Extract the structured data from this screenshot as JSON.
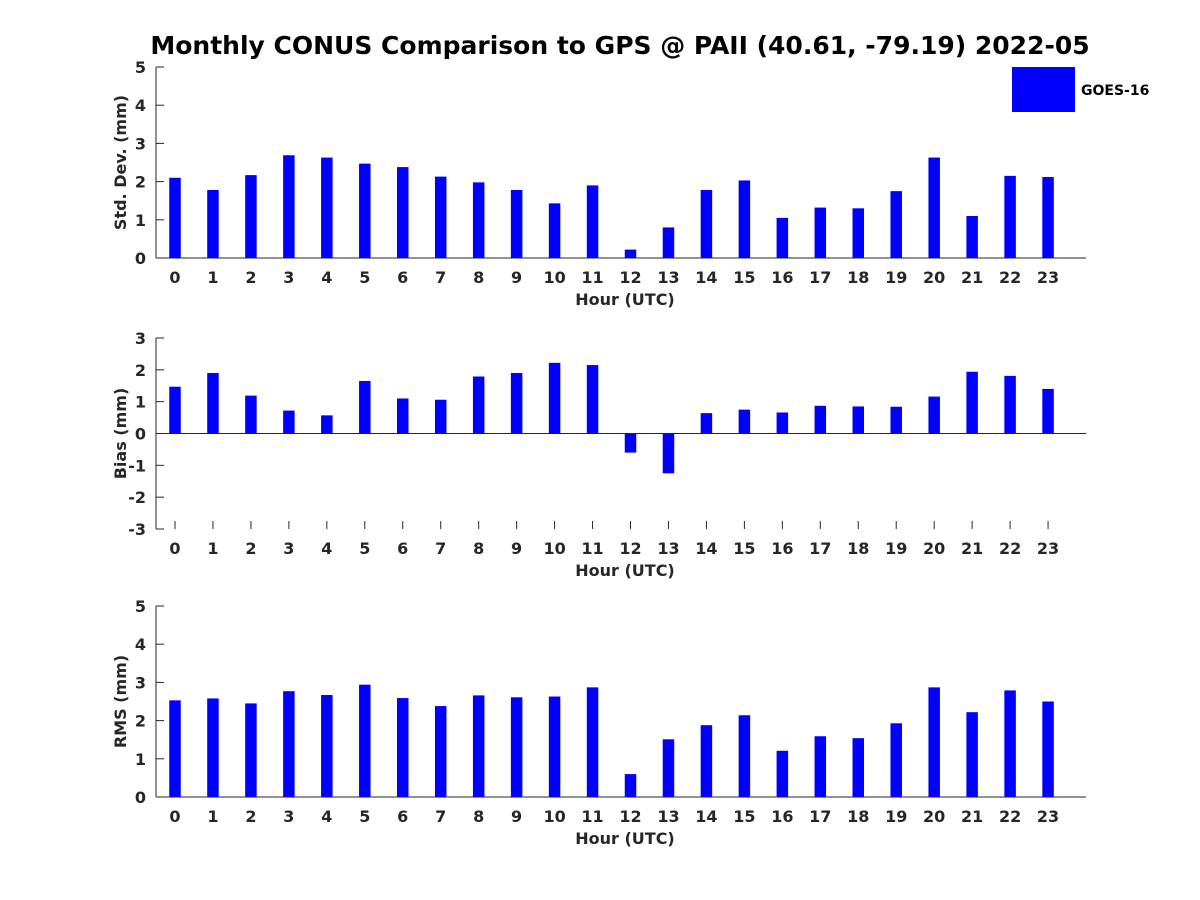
{
  "chart_data": {
    "title": "Monthly CONUS Comparison to GPS @ PAII (40.61, -79.19) 2022-05",
    "legend": {
      "label": "GOES-16",
      "color": "#0000ff",
      "placement": "top-right"
    },
    "colors": {
      "bar": "#0000ff",
      "axis": "#262626"
    },
    "panels": [
      {
        "type": "bar",
        "name": "std-dev",
        "xlabel": "Hour (UTC)",
        "ylabel": "Std. Dev. (mm)",
        "ylim": [
          0,
          5
        ],
        "yticks": [
          "0",
          "1",
          "2",
          "3",
          "4",
          "5"
        ],
        "categories": [
          "0",
          "1",
          "2",
          "3",
          "4",
          "5",
          "6",
          "7",
          "8",
          "9",
          "10",
          "11",
          "12",
          "13",
          "14",
          "15",
          "16",
          "17",
          "18",
          "19",
          "20",
          "21",
          "22",
          "23"
        ],
        "values": [
          2.1,
          1.78,
          2.17,
          2.69,
          2.63,
          2.47,
          2.38,
          2.13,
          1.98,
          1.78,
          1.43,
          1.9,
          0.22,
          0.8,
          1.78,
          2.03,
          1.05,
          1.32,
          1.3,
          1.75,
          2.63,
          1.1,
          2.15,
          2.12
        ],
        "series": [
          {
            "name": "GOES-16"
          }
        ]
      },
      {
        "type": "bar",
        "name": "bias",
        "xlabel": "Hour (UTC)",
        "ylabel": "Bias (mm)",
        "ylim": [
          -3,
          3
        ],
        "yticks": [
          "-3",
          "-2",
          "-1",
          "0",
          "1",
          "2",
          "3"
        ],
        "categories": [
          "0",
          "1",
          "2",
          "3",
          "4",
          "5",
          "6",
          "7",
          "8",
          "9",
          "10",
          "11",
          "12",
          "13",
          "14",
          "15",
          "16",
          "17",
          "18",
          "19",
          "20",
          "21",
          "22",
          "23"
        ],
        "values": [
          1.47,
          1.9,
          1.19,
          0.72,
          0.57,
          1.65,
          1.1,
          1.06,
          1.79,
          1.9,
          2.22,
          2.15,
          -0.6,
          -1.25,
          0.64,
          0.75,
          0.66,
          0.87,
          0.85,
          0.84,
          1.16,
          1.94,
          1.81,
          1.4
        ],
        "series": [
          {
            "name": "GOES-16"
          }
        ]
      },
      {
        "type": "bar",
        "name": "rms",
        "xlabel": "Hour (UTC)",
        "ylabel": "RMS (mm)",
        "ylim": [
          0,
          5
        ],
        "yticks": [
          "0",
          "1",
          "2",
          "3",
          "4",
          "5"
        ],
        "categories": [
          "0",
          "1",
          "2",
          "3",
          "4",
          "5",
          "6",
          "7",
          "8",
          "9",
          "10",
          "11",
          "12",
          "13",
          "14",
          "15",
          "16",
          "17",
          "18",
          "19",
          "20",
          "21",
          "22",
          "23"
        ],
        "values": [
          2.53,
          2.58,
          2.45,
          2.77,
          2.67,
          2.94,
          2.59,
          2.38,
          2.66,
          2.61,
          2.63,
          2.87,
          0.6,
          1.51,
          1.88,
          2.14,
          1.21,
          1.59,
          1.54,
          1.93,
          2.87,
          2.22,
          2.79,
          2.5
        ],
        "series": [
          {
            "name": "GOES-16"
          }
        ]
      }
    ]
  }
}
